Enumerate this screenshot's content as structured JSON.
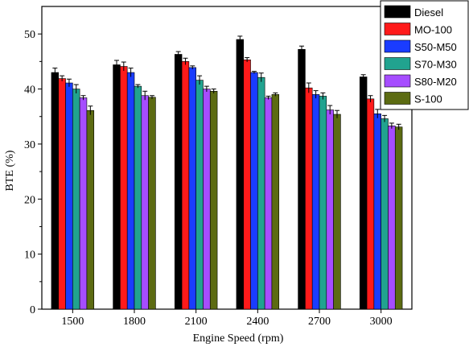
{
  "chart_data": {
    "type": "bar",
    "xlabel": "Engine Speed (rpm)",
    "ylabel": "BTE (%)",
    "ylim": [
      0,
      55
    ],
    "yticks": [
      0,
      10,
      20,
      30,
      40,
      50
    ],
    "categories": [
      "1500",
      "1800",
      "2100",
      "2400",
      "2700",
      "3000"
    ],
    "legend_position": "top-right",
    "series": [
      {
        "name": "Diesel",
        "color": "#000000",
        "values": [
          43.0,
          44.4,
          46.3,
          49.0,
          47.2,
          42.2
        ],
        "errors": [
          0.8,
          0.8,
          0.5,
          0.6,
          0.6,
          0.4
        ]
      },
      {
        "name": "MO-100",
        "color": "#ff1a1a",
        "values": [
          41.9,
          44.1,
          45.0,
          45.3,
          40.2,
          38.2
        ],
        "errors": [
          0.5,
          0.8,
          0.6,
          0.4,
          0.9,
          0.6
        ]
      },
      {
        "name": "S50-M50",
        "color": "#1a3cff",
        "values": [
          41.1,
          43.0,
          43.9,
          43.0,
          39.0,
          35.5
        ],
        "errors": [
          0.7,
          0.8,
          0.3,
          0.2,
          0.7,
          0.8
        ]
      },
      {
        "name": "S70-M30",
        "color": "#21a38f",
        "values": [
          40.0,
          40.5,
          41.6,
          42.1,
          38.7,
          34.6
        ],
        "errors": [
          0.8,
          0.3,
          0.8,
          0.8,
          0.6,
          0.6
        ]
      },
      {
        "name": "S80-M20",
        "color": "#a64dff",
        "values": [
          38.4,
          38.8,
          40.0,
          38.4,
          36.2,
          33.3
        ],
        "errors": [
          0.4,
          0.8,
          0.5,
          0.3,
          0.8,
          0.5
        ]
      },
      {
        "name": "S-100",
        "color": "#5c6b12",
        "values": [
          36.1,
          38.5,
          39.6,
          39.0,
          35.4,
          33.1
        ],
        "errors": [
          0.8,
          0.3,
          0.4,
          0.3,
          0.7,
          0.5
        ]
      }
    ]
  }
}
